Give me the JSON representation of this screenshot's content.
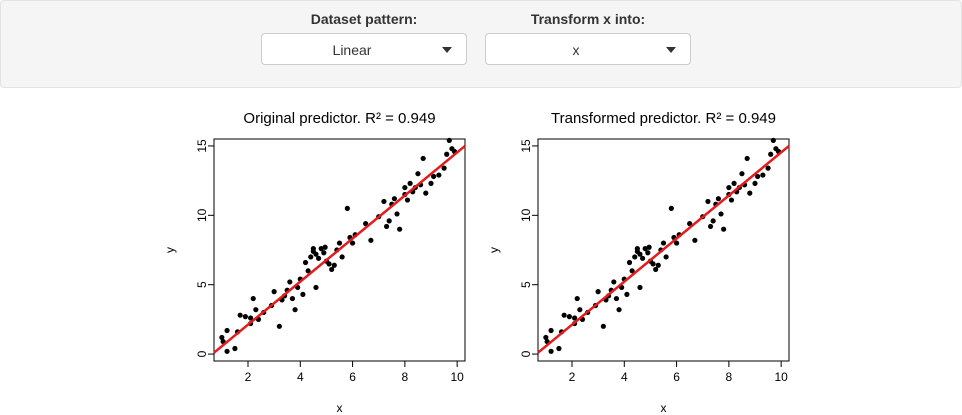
{
  "controls": {
    "pattern": {
      "label": "Dataset pattern:",
      "value": "Linear"
    },
    "transform": {
      "label": "Transform x into:",
      "value": "x"
    }
  },
  "colors": {
    "points": "#000000",
    "fit_line": "#e41a1c",
    "panel_bg": "#f5f5f5"
  },
  "icons": {
    "select_caret": "caret-down-icon"
  },
  "chart_data": [
    {
      "type": "scatter",
      "title": "Original predictor. R² = 0.949",
      "xlabel": "x",
      "ylabel": "y",
      "xlim": [
        0.7,
        10.3
      ],
      "ylim": [
        -0.5,
        15.5
      ],
      "xticks": [
        2,
        4,
        6,
        8,
        10
      ],
      "yticks": [
        0,
        5,
        10,
        15
      ],
      "fit_line": {
        "x": [
          0.7,
          10.3
        ],
        "y": [
          0.1,
          15.0
        ]
      },
      "points": [
        [
          1.0,
          1.2
        ],
        [
          1.05,
          0.9
        ],
        [
          1.2,
          1.7
        ],
        [
          1.2,
          0.2
        ],
        [
          1.5,
          0.4
        ],
        [
          1.6,
          1.6
        ],
        [
          1.7,
          2.8
        ],
        [
          1.9,
          2.7
        ],
        [
          2.1,
          2.2
        ],
        [
          2.1,
          2.6
        ],
        [
          2.2,
          4.0
        ],
        [
          2.3,
          3.2
        ],
        [
          2.4,
          2.5
        ],
        [
          2.6,
          3.0
        ],
        [
          2.9,
          3.5
        ],
        [
          3.0,
          4.5
        ],
        [
          3.2,
          2.0
        ],
        [
          3.3,
          3.9
        ],
        [
          3.4,
          4.2
        ],
        [
          3.5,
          4.6
        ],
        [
          3.6,
          5.2
        ],
        [
          3.7,
          4.0
        ],
        [
          3.8,
          3.2
        ],
        [
          3.9,
          4.8
        ],
        [
          4.0,
          5.4
        ],
        [
          4.1,
          4.3
        ],
        [
          4.2,
          6.6
        ],
        [
          4.3,
          6.0
        ],
        [
          4.4,
          7.0
        ],
        [
          4.5,
          7.4
        ],
        [
          4.5,
          7.6
        ],
        [
          4.6,
          4.8
        ],
        [
          4.6,
          7.2
        ],
        [
          4.7,
          6.9
        ],
        [
          4.8,
          7.6
        ],
        [
          4.9,
          7.3
        ],
        [
          4.95,
          7.7
        ],
        [
          5.0,
          6.7
        ],
        [
          5.1,
          6.5
        ],
        [
          5.2,
          6.1
        ],
        [
          5.3,
          6.4
        ],
        [
          5.4,
          7.5
        ],
        [
          5.5,
          8.0
        ],
        [
          5.6,
          7.0
        ],
        [
          5.8,
          10.5
        ],
        [
          5.9,
          8.4
        ],
        [
          6.0,
          8.0
        ],
        [
          6.1,
          8.6
        ],
        [
          6.5,
          9.4
        ],
        [
          6.7,
          8.2
        ],
        [
          7.0,
          9.9
        ],
        [
          7.2,
          11.0
        ],
        [
          7.3,
          9.2
        ],
        [
          7.4,
          9.6
        ],
        [
          7.5,
          10.8
        ],
        [
          7.6,
          11.2
        ],
        [
          7.7,
          10.1
        ],
        [
          7.8,
          9.0
        ],
        [
          8.0,
          12.0
        ],
        [
          8.0,
          11.5
        ],
        [
          8.1,
          11.1
        ],
        [
          8.2,
          12.3
        ],
        [
          8.3,
          11.7
        ],
        [
          8.4,
          12.0
        ],
        [
          8.5,
          13.0
        ],
        [
          8.6,
          12.2
        ],
        [
          8.7,
          14.1
        ],
        [
          8.8,
          11.6
        ],
        [
          9.0,
          12.3
        ],
        [
          9.1,
          12.8
        ],
        [
          9.3,
          12.9
        ],
        [
          9.5,
          13.4
        ],
        [
          9.6,
          14.4
        ],
        [
          9.7,
          15.4
        ],
        [
          9.8,
          14.8
        ],
        [
          9.9,
          14.6
        ]
      ]
    },
    {
      "type": "scatter",
      "title": "Transformed predictor. R² = 0.949",
      "xlabel": "x",
      "ylabel": "y",
      "xlim": [
        0.7,
        10.3
      ],
      "ylim": [
        -0.5,
        15.5
      ],
      "xticks": [
        2,
        4,
        6,
        8,
        10
      ],
      "yticks": [
        0,
        5,
        10,
        15
      ],
      "fit_line": {
        "x": [
          0.7,
          10.3
        ],
        "y": [
          0.1,
          15.0
        ]
      },
      "points": [
        [
          1.0,
          1.2
        ],
        [
          1.05,
          0.9
        ],
        [
          1.2,
          1.7
        ],
        [
          1.2,
          0.2
        ],
        [
          1.5,
          0.4
        ],
        [
          1.6,
          1.6
        ],
        [
          1.7,
          2.8
        ],
        [
          1.9,
          2.7
        ],
        [
          2.1,
          2.2
        ],
        [
          2.1,
          2.6
        ],
        [
          2.2,
          4.0
        ],
        [
          2.3,
          3.2
        ],
        [
          2.4,
          2.5
        ],
        [
          2.6,
          3.0
        ],
        [
          2.9,
          3.5
        ],
        [
          3.0,
          4.5
        ],
        [
          3.2,
          2.0
        ],
        [
          3.3,
          3.9
        ],
        [
          3.4,
          4.2
        ],
        [
          3.5,
          4.6
        ],
        [
          3.6,
          5.2
        ],
        [
          3.7,
          4.0
        ],
        [
          3.8,
          3.2
        ],
        [
          3.9,
          4.8
        ],
        [
          4.0,
          5.4
        ],
        [
          4.1,
          4.3
        ],
        [
          4.2,
          6.6
        ],
        [
          4.3,
          6.0
        ],
        [
          4.4,
          7.0
        ],
        [
          4.5,
          7.4
        ],
        [
          4.5,
          7.6
        ],
        [
          4.6,
          4.8
        ],
        [
          4.6,
          7.2
        ],
        [
          4.7,
          6.9
        ],
        [
          4.8,
          7.6
        ],
        [
          4.9,
          7.3
        ],
        [
          4.95,
          7.7
        ],
        [
          5.0,
          6.7
        ],
        [
          5.1,
          6.5
        ],
        [
          5.2,
          6.1
        ],
        [
          5.3,
          6.4
        ],
        [
          5.4,
          7.5
        ],
        [
          5.5,
          8.0
        ],
        [
          5.6,
          7.0
        ],
        [
          5.8,
          10.5
        ],
        [
          5.9,
          8.4
        ],
        [
          6.0,
          8.0
        ],
        [
          6.1,
          8.6
        ],
        [
          6.5,
          9.4
        ],
        [
          6.7,
          8.2
        ],
        [
          7.0,
          9.9
        ],
        [
          7.2,
          11.0
        ],
        [
          7.3,
          9.2
        ],
        [
          7.4,
          9.6
        ],
        [
          7.5,
          10.8
        ],
        [
          7.6,
          11.2
        ],
        [
          7.7,
          10.1
        ],
        [
          7.8,
          9.0
        ],
        [
          8.0,
          12.0
        ],
        [
          8.0,
          11.5
        ],
        [
          8.1,
          11.1
        ],
        [
          8.2,
          12.3
        ],
        [
          8.3,
          11.7
        ],
        [
          8.4,
          12.0
        ],
        [
          8.5,
          13.0
        ],
        [
          8.6,
          12.2
        ],
        [
          8.7,
          14.1
        ],
        [
          8.8,
          11.6
        ],
        [
          9.0,
          12.3
        ],
        [
          9.1,
          12.8
        ],
        [
          9.3,
          12.9
        ],
        [
          9.5,
          13.4
        ],
        [
          9.6,
          14.4
        ],
        [
          9.7,
          15.4
        ],
        [
          9.8,
          14.8
        ],
        [
          9.9,
          14.6
        ]
      ]
    }
  ]
}
